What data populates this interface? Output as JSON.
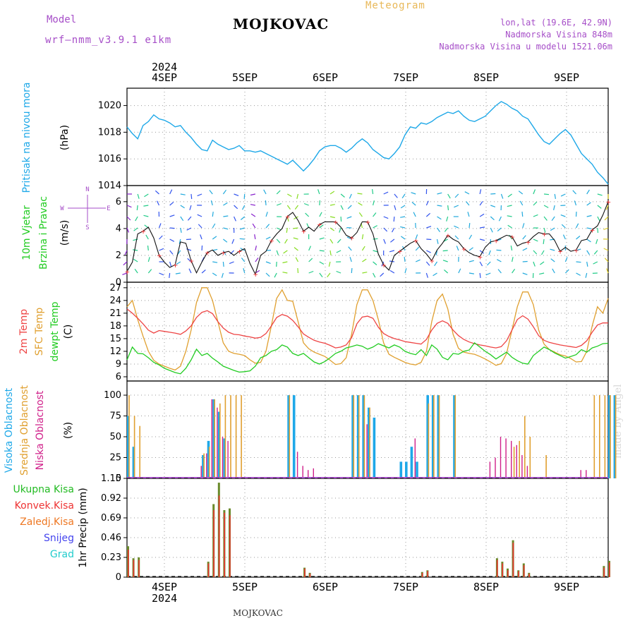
{
  "header": {
    "model_label": "Model",
    "model_name": "wrf–nmm_v3.9.1  e1km",
    "title": "MOJKOVAC",
    "meteogram_label": "Meteogram",
    "location_line1": "lon,lat (19.6E, 42.9N)",
    "location_line2": "Nadmorska Visina 848m",
    "location_line3": "Nadmorska Visina u modelu 1521.06m",
    "bottom_label": "MOJKOVAC",
    "credit": "made by Angel"
  },
  "colors": {
    "pressure": "#1ea8e8",
    "wind_title": "#22cc22",
    "temp_2m": "#ee4444",
    "temp_sfc": "#e0a030",
    "dewpoint": "#22cc22",
    "cloud_high": "#1ea8e8",
    "cloud_mid": "#e0a030",
    "cloud_low": "#d0208a",
    "precip_total": "#22bb22",
    "precip_conv": "#ee3333",
    "precip_frozen": "#ee7722",
    "snow": "#4444ee",
    "hail": "#22cccc",
    "wind_rose": "#a64ec8"
  },
  "chart_data": [
    {
      "type": "line",
      "title": "",
      "ylabel_lines": [
        "Pritisak na nivou mora",
        "(hPa)"
      ],
      "top_year": "2024",
      "top_x_ticks": [
        "4SEP",
        "5SEP",
        "6SEP",
        "7SEP",
        "8SEP",
        "9SEP"
      ],
      "ylim": [
        1014,
        1021.3
      ],
      "yticks": [
        "1020",
        "1018",
        "1016",
        "1014"
      ],
      "grid": true,
      "series": [
        {
          "values": [
            1018.4,
            1017.9,
            1017.5,
            1018.5,
            1018.8,
            1019.3,
            1019.0,
            1018.9,
            1018.7,
            1018.4,
            1018.5,
            1018.0,
            1017.6,
            1017.1,
            1016.7,
            1016.6,
            1017.4,
            1017.1,
            1016.9,
            1016.7,
            1016.8,
            1017.0,
            1016.6,
            1016.6,
            1016.5,
            1016.6,
            1016.4,
            1016.2,
            1016.0,
            1015.8,
            1015.6,
            1015.9,
            1015.5,
            1015.1,
            1015.5,
            1016.0,
            1016.6,
            1016.9,
            1017.0,
            1017.0,
            1016.8,
            1016.5,
            1016.8,
            1017.2,
            1017.5,
            1017.2,
            1016.7,
            1016.4,
            1016.1,
            1016.0,
            1016.4,
            1016.9,
            1017.8,
            1018.4,
            1018.3,
            1018.7,
            1018.6,
            1018.8,
            1019.1,
            1019.3,
            1019.5,
            1019.4,
            1019.6,
            1019.2,
            1018.9,
            1018.8,
            1019.0,
            1019.2,
            1019.6,
            1020.0,
            1020.3,
            1020.1,
            1019.8,
            1019.6,
            1019.2,
            1019.0,
            1018.4,
            1017.8,
            1017.3,
            1017.1,
            1017.5,
            1017.9,
            1018.2,
            1017.8,
            1017.1,
            1016.4,
            1016.0,
            1015.6,
            1015.0,
            1014.6,
            1014.1
          ]
        }
      ]
    },
    {
      "type": "line",
      "title": "",
      "ylabel_lines": [
        "10m Vjetar",
        "Brzina i Pravac",
        "(m/s)"
      ],
      "wind_rose_labels": [
        "N",
        "W",
        "E",
        "S"
      ],
      "ylim": [
        0,
        7.2
      ],
      "yticks": [
        "6",
        "4",
        "2",
        "0"
      ],
      "grid": true,
      "series": [
        {
          "values": [
            0.8,
            1.5,
            3.6,
            3.8,
            4.1,
            3.3,
            2.0,
            1.5,
            1.1,
            1.3,
            3.0,
            2.9,
            1.6,
            0.7,
            1.5,
            2.2,
            2.4,
            2.0,
            2.2,
            2.3,
            2.0,
            2.3,
            2.5,
            1.4,
            0.6,
            2.0,
            2.3,
            3.1,
            3.6,
            4.0,
            4.9,
            5.2,
            4.6,
            3.8,
            4.1,
            3.8,
            4.3,
            4.5,
            4.5,
            4.5,
            4.1,
            3.5,
            3.3,
            3.7,
            4.5,
            4.5,
            3.6,
            2.1,
            1.3,
            0.9,
            2.0,
            2.3,
            2.6,
            2.9,
            3.1,
            2.5,
            2.1,
            1.6,
            2.4,
            2.9,
            3.5,
            3.2,
            3.0,
            2.5,
            2.2,
            2.0,
            1.9,
            2.6,
            3.0,
            3.1,
            3.3,
            3.5,
            3.4,
            2.7,
            2.9,
            3.0,
            3.4,
            3.7,
            3.6,
            3.6,
            3.1,
            2.3,
            2.6,
            2.3,
            2.4,
            3.1,
            3.2,
            3.9,
            4.2,
            5.0,
            6.0
          ]
        }
      ]
    },
    {
      "type": "line",
      "title": "",
      "ylabel_lines": [
        "2m Temp",
        "SFC Temp",
        "dewpt Temp",
        "(C)"
      ],
      "ylim": [
        5,
        28.3
      ],
      "yticks": [
        "27",
        "24",
        "21",
        "18",
        "15",
        "12",
        "9",
        "6"
      ],
      "grid": true,
      "series": [
        {
          "name": "2m Temp",
          "values": [
            22.0,
            21.0,
            19.8,
            18.5,
            17.0,
            16.3,
            16.9,
            16.7,
            16.5,
            16.3,
            16.0,
            16.8,
            18.0,
            20.0,
            21.2,
            21.6,
            20.9,
            19.0,
            17.5,
            16.5,
            16.0,
            15.9,
            15.6,
            15.4,
            15.1,
            15.3,
            16.2,
            18.0,
            20.0,
            20.7,
            20.3,
            19.3,
            17.8,
            16.1,
            15.3,
            14.6,
            14.2,
            13.9,
            13.4,
            12.8,
            13.0,
            13.5,
            15.2,
            18.5,
            20.1,
            20.3,
            19.8,
            17.7,
            16.2,
            15.5,
            15.0,
            14.7,
            14.3,
            14.1,
            13.9,
            13.7,
            14.8,
            17.0,
            18.6,
            19.2,
            18.6,
            17.0,
            15.7,
            14.8,
            14.2,
            13.8,
            13.5,
            13.3,
            13.0,
            12.8,
            13.1,
            14.5,
            17.0,
            19.5,
            20.4,
            19.6,
            17.8,
            15.7,
            14.6,
            14.1,
            13.8,
            13.5,
            13.3,
            13.1,
            12.9,
            13.4,
            14.5,
            16.5,
            18.2,
            18.7,
            18.7
          ]
        },
        {
          "name": "SFC Temp",
          "values": [
            22.5,
            24.0,
            19.5,
            15.6,
            12.0,
            9.9,
            9.0,
            8.5,
            8.0,
            7.6,
            8.5,
            12.0,
            17.0,
            23.5,
            27.0,
            27.0,
            24.0,
            19.0,
            14.0,
            12.0,
            11.5,
            11.3,
            11.0,
            10.0,
            9.2,
            9.4,
            12.0,
            18.0,
            24.5,
            26.5,
            24.0,
            23.8,
            19.0,
            14.0,
            12.6,
            11.8,
            11.3,
            10.8,
            9.9,
            8.9,
            9.1,
            10.5,
            16.0,
            23.0,
            26.5,
            26.5,
            24.0,
            19.5,
            14.0,
            11.3,
            10.6,
            10.0,
            9.4,
            9.0,
            8.8,
            9.4,
            12.0,
            19.0,
            24.0,
            25.5,
            22.0,
            16.0,
            12.7,
            11.8,
            11.5,
            11.3,
            10.8,
            10.2,
            9.5,
            8.7,
            9.1,
            11.5,
            17.0,
            22.5,
            26.0,
            26.0,
            23.0,
            17.0,
            13.7,
            12.4,
            11.8,
            11.2,
            10.9,
            10.3,
            9.5,
            9.6,
            12.0,
            18.0,
            22.5,
            21.0,
            24.5
          ]
        },
        {
          "name": "dewpt Temp",
          "values": [
            10.0,
            13.0,
            11.5,
            11.4,
            10.5,
            9.4,
            8.8,
            8.0,
            7.5,
            7.0,
            6.7,
            8.0,
            10.0,
            12.5,
            11.0,
            11.5,
            10.4,
            9.5,
            8.5,
            8.0,
            7.5,
            7.1,
            7.2,
            7.4,
            8.5,
            10.5,
            11.0,
            12.0,
            12.4,
            13.5,
            13.0,
            11.5,
            11.0,
            11.5,
            10.5,
            9.5,
            9.0,
            9.6,
            10.5,
            11.5,
            12.0,
            12.8,
            13.1,
            13.5,
            13.2,
            12.5,
            13.0,
            13.8,
            13.3,
            12.8,
            13.5,
            13.0,
            12.0,
            11.5,
            11.2,
            12.4,
            11.0,
            13.5,
            12.5,
            10.6,
            10.0,
            11.5,
            11.3,
            12.0,
            12.3,
            14.0,
            13.0,
            12.0,
            11.2,
            10.2,
            11.0,
            11.8,
            10.6,
            9.8,
            9.2,
            9.0,
            11.0,
            12.0,
            13.0,
            12.4,
            11.6,
            11.0,
            10.4,
            10.8,
            11.2,
            12.4,
            11.8,
            12.8,
            13.2,
            13.8,
            13.9
          ]
        }
      ]
    },
    {
      "type": "bar",
      "title": "",
      "ylabel_lines": [
        "Visoka Oblacnost",
        "Srednja Oblacnost",
        "Niska Oblacnost",
        "(%)"
      ],
      "ylim": [
        0,
        100
      ],
      "yticks": [
        "100",
        "75",
        "50",
        "25",
        "0"
      ],
      "grid": true,
      "series": [
        {
          "name": "Visoka Oblacnost",
          "values": [
            75,
            38,
            0,
            0,
            0,
            0,
            0,
            0,
            0,
            0,
            0,
            0,
            0,
            0,
            28,
            45,
            95,
            80,
            48,
            0,
            0,
            0,
            0,
            0,
            0,
            0,
            0,
            0,
            0,
            0,
            100,
            100,
            0,
            0,
            0,
            0,
            0,
            0,
            0,
            0,
            0,
            0,
            100,
            100,
            100,
            85,
            73,
            0,
            0,
            0,
            0,
            20,
            20,
            38,
            20,
            0,
            100,
            100,
            100,
            0,
            0,
            100,
            0,
            0,
            0,
            0,
            0,
            0,
            0,
            0,
            0,
            0,
            0,
            0,
            0,
            0,
            0,
            0,
            0,
            0,
            0,
            0,
            0,
            0,
            0,
            0,
            0,
            0,
            0,
            0,
            100,
            100
          ]
        },
        {
          "name": "Srednja Oblacnost",
          "values": [
            100,
            75,
            63,
            0,
            0,
            0,
            0,
            0,
            0,
            0,
            0,
            0,
            0,
            0,
            30,
            38,
            95,
            90,
            100,
            100,
            100,
            100,
            0,
            0,
            0,
            0,
            0,
            0,
            0,
            0,
            100,
            0,
            0,
            0,
            0,
            0,
            0,
            0,
            0,
            0,
            0,
            0,
            100,
            100,
            100,
            85,
            0,
            0,
            0,
            0,
            0,
            0,
            0,
            0,
            0,
            0,
            90,
            100,
            100,
            0,
            0,
            100,
            0,
            0,
            0,
            0,
            0,
            0,
            0,
            0,
            0,
            0,
            38,
            45,
            75,
            50,
            0,
            0,
            28,
            0,
            0,
            0,
            0,
            0,
            0,
            0,
            0,
            100,
            100,
            100,
            100,
            100
          ]
        },
        {
          "name": "Niska Oblacnost",
          "values": [
            0,
            0,
            0,
            0,
            0,
            0,
            0,
            0,
            0,
            0,
            0,
            0,
            0,
            0,
            15,
            30,
            95,
            85,
            50,
            45,
            0,
            0,
            0,
            0,
            0,
            0,
            0,
            0,
            0,
            0,
            0,
            0,
            32,
            15,
            10,
            12,
            0,
            0,
            0,
            0,
            0,
            0,
            0,
            0,
            0,
            65,
            0,
            0,
            0,
            0,
            0,
            0,
            0,
            0,
            48,
            0,
            0,
            0,
            0,
            0,
            0,
            0,
            0,
            0,
            0,
            0,
            0,
            0,
            20,
            25,
            50,
            48,
            45,
            40,
            28,
            15,
            0,
            0,
            0,
            0,
            0,
            0,
            0,
            0,
            0,
            10,
            10,
            0,
            0,
            0,
            0
          ]
        }
      ]
    },
    {
      "type": "bar",
      "title": "",
      "ylabel_lines": [
        "Ukupna Kisa",
        "Konvek.Kisa",
        "Zaledj.Kisa",
        "Snijeg",
        "Grad",
        "1hr Precip (mm)"
      ],
      "ylim": [
        0,
        1.15
      ],
      "yticks": [
        "1.15",
        "0.92",
        "0.69",
        "0.46",
        "0.23",
        "0"
      ],
      "grid": true,
      "bottom_x_ticks": [
        "4SEP",
        "5SEP",
        "6SEP",
        "7SEP",
        "8SEP",
        "9SEP"
      ],
      "bottom_year": "2024",
      "series": [
        {
          "name": "Ukupna Kisa",
          "values": [
            0.36,
            0.22,
            0.23,
            0,
            0,
            0,
            0,
            0,
            0,
            0,
            0,
            0,
            0,
            0,
            0,
            0.18,
            0.85,
            1.1,
            0.78,
            0.8,
            0,
            0,
            0,
            0,
            0,
            0,
            0,
            0,
            0,
            0,
            0,
            0,
            0,
            0.11,
            0.05,
            0,
            0,
            0,
            0,
            0,
            0,
            0,
            0,
            0,
            0,
            0,
            0,
            0,
            0,
            0,
            0,
            0,
            0,
            0,
            0,
            0.06,
            0.08,
            0,
            0,
            0,
            0,
            0,
            0,
            0,
            0,
            0,
            0,
            0,
            0,
            0.22,
            0.18,
            0.1,
            0.43,
            0.08,
            0.16,
            0.05,
            0,
            0,
            0,
            0,
            0,
            0,
            0,
            0,
            0,
            0,
            0,
            0,
            0,
            0.13,
            0.19
          ]
        },
        {
          "name": "Konvek.Kisa",
          "values": [
            0.32,
            0.2,
            0.2,
            0,
            0,
            0,
            0,
            0,
            0,
            0,
            0,
            0,
            0,
            0,
            0,
            0.16,
            0.78,
            0.95,
            0.75,
            0.72,
            0,
            0,
            0,
            0,
            0,
            0,
            0,
            0,
            0,
            0,
            0,
            0,
            0,
            0.1,
            0.04,
            0,
            0,
            0,
            0,
            0,
            0,
            0,
            0,
            0,
            0,
            0,
            0,
            0,
            0,
            0,
            0,
            0,
            0,
            0,
            0,
            0.05,
            0.07,
            0,
            0,
            0,
            0,
            0,
            0,
            0,
            0,
            0,
            0,
            0,
            0,
            0.2,
            0.16,
            0.08,
            0.4,
            0.07,
            0.14,
            0.04,
            0,
            0,
            0,
            0,
            0,
            0,
            0,
            0,
            0,
            0,
            0,
            0,
            0,
            0.11,
            0.17
          ]
        }
      ]
    }
  ]
}
